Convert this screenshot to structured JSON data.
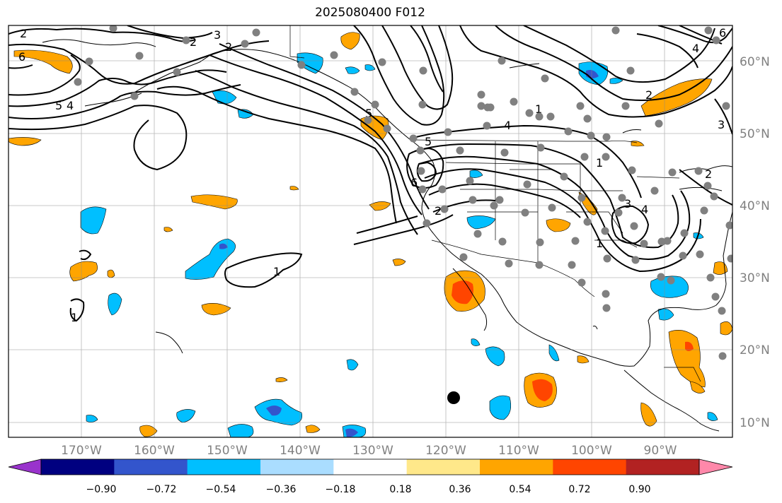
{
  "title": "2025080400 F012",
  "map": {
    "lon_labels": [
      "170°W",
      "160°W",
      "150°W",
      "140°W",
      "130°W",
      "120°W",
      "110°W",
      "100°W",
      "90°W"
    ],
    "lat_labels": [
      "60°N",
      "50°N",
      "40°N",
      "30°N",
      "20°N",
      "10°N"
    ],
    "contour_labels": [
      "2",
      "2",
      "3",
      "2",
      "6",
      "4",
      "5",
      "1",
      "4",
      "5",
      "5",
      "6",
      "2",
      "1",
      "3",
      "4",
      "1",
      "2",
      "3",
      "6",
      "4",
      "1",
      "2",
      "1"
    ]
  },
  "colorbar": {
    "tick_labels": [
      "−0.90",
      "−0.72",
      "−0.54",
      "−0.36",
      "−0.18",
      "0.18",
      "0.36",
      "0.54",
      "0.72",
      "0.90"
    ],
    "colors": [
      "#9933cc",
      "#000080",
      "#3355cc",
      "#00bfff",
      "#aaddff",
      "#ffffff",
      "#ffe88a",
      "#ffa500",
      "#ff4500",
      "#b22222",
      "#ff88aa"
    ]
  }
}
